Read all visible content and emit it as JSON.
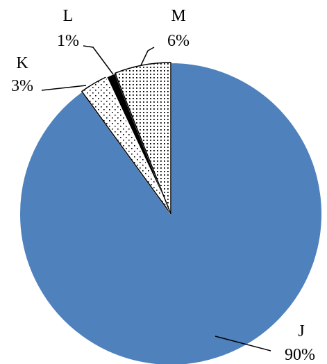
{
  "chart_data": {
    "type": "pie",
    "slices": [
      {
        "name": "J",
        "value": 90,
        "label": "90%",
        "fill": "blue"
      },
      {
        "name": "K",
        "value": 3,
        "label": "3%",
        "fill": "sparse-dots"
      },
      {
        "name": "L",
        "value": 1,
        "label": "1%",
        "fill": "black"
      },
      {
        "name": "M",
        "value": 6,
        "label": "6%",
        "fill": "dense-dots"
      }
    ],
    "colors": {
      "J": "#4f81bd",
      "L": "#000000",
      "dots": "#000000",
      "background": "#ffffff",
      "edge": "#ffffff",
      "outline": "#000000"
    },
    "legend": "none",
    "start": "top, clockwise"
  }
}
